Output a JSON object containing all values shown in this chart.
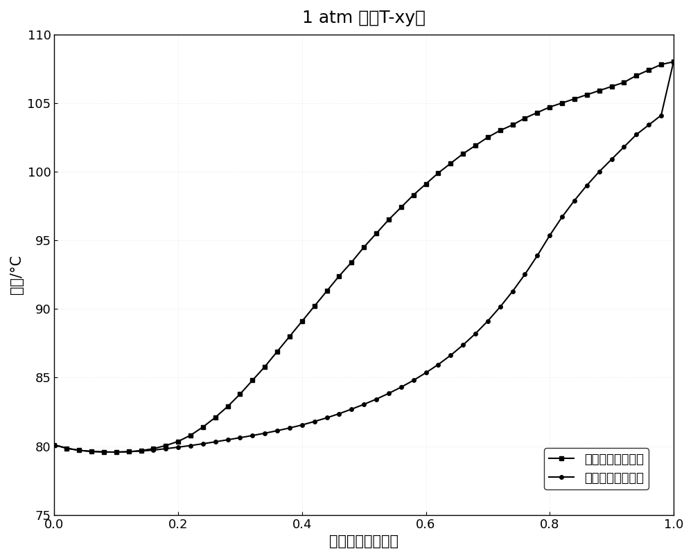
{
  "title": "1 atm 下的T-xy图",
  "xlabel": "异丁醇的摸尔分数",
  "ylabel": "温度/°C",
  "xlim": [
    0.0,
    1.0
  ],
  "ylim": [
    75,
    110
  ],
  "yticks": [
    75,
    80,
    85,
    90,
    95,
    100,
    105,
    110
  ],
  "xticks": [
    0.0,
    0.2,
    0.4,
    0.6,
    0.8,
    1.0
  ],
  "legend_vapor": "异丁醇的气相组成",
  "legend_liquid": "异丁醇的液相组成",
  "vapor_x": [
    0.0,
    0.02,
    0.04,
    0.06,
    0.08,
    0.1,
    0.12,
    0.14,
    0.16,
    0.18,
    0.2,
    0.22,
    0.24,
    0.26,
    0.28,
    0.3,
    0.32,
    0.34,
    0.36,
    0.38,
    0.4,
    0.42,
    0.44,
    0.46,
    0.48,
    0.5,
    0.52,
    0.54,
    0.56,
    0.58,
    0.6,
    0.62,
    0.64,
    0.66,
    0.68,
    0.7,
    0.72,
    0.74,
    0.76,
    0.78,
    0.8,
    0.82,
    0.84,
    0.86,
    0.88,
    0.9,
    0.92,
    0.94,
    0.96,
    0.98,
    1.0
  ],
  "vapor_T": [
    80.1,
    79.85,
    79.7,
    79.62,
    79.58,
    79.57,
    79.6,
    79.68,
    79.82,
    80.05,
    80.35,
    80.8,
    81.4,
    82.1,
    82.9,
    83.8,
    84.8,
    85.8,
    86.9,
    88.0,
    89.1,
    90.2,
    91.3,
    92.4,
    93.4,
    94.5,
    95.5,
    96.5,
    97.4,
    98.3,
    99.1,
    99.9,
    100.6,
    101.3,
    101.9,
    102.5,
    103.0,
    103.4,
    103.9,
    104.3,
    104.7,
    105.0,
    105.3,
    105.6,
    105.9,
    106.2,
    106.5,
    107.0,
    107.4,
    107.8,
    108.0
  ],
  "liquid_x": [
    0.0,
    0.02,
    0.04,
    0.06,
    0.08,
    0.1,
    0.12,
    0.14,
    0.16,
    0.18,
    0.2,
    0.22,
    0.24,
    0.26,
    0.28,
    0.3,
    0.32,
    0.34,
    0.36,
    0.38,
    0.4,
    0.42,
    0.44,
    0.46,
    0.48,
    0.5,
    0.52,
    0.54,
    0.56,
    0.58,
    0.6,
    0.62,
    0.64,
    0.66,
    0.68,
    0.7,
    0.72,
    0.74,
    0.76,
    0.78,
    0.8,
    0.82,
    0.84,
    0.86,
    0.88,
    0.9,
    0.92,
    0.94,
    0.96,
    0.98,
    1.0
  ],
  "liquid_T": [
    80.1,
    79.85,
    79.7,
    79.62,
    79.58,
    79.57,
    79.6,
    79.65,
    79.72,
    79.82,
    79.93,
    80.05,
    80.18,
    80.32,
    80.47,
    80.62,
    80.78,
    80.95,
    81.13,
    81.33,
    81.55,
    81.8,
    82.07,
    82.37,
    82.7,
    83.05,
    83.43,
    83.85,
    84.3,
    84.8,
    85.35,
    85.95,
    86.62,
    87.37,
    88.2,
    89.12,
    90.15,
    91.28,
    92.52,
    93.88,
    95.35,
    96.7,
    97.9,
    99.0,
    100.0,
    100.9,
    101.8,
    102.7,
    103.4,
    104.1,
    108.0
  ],
  "line_color": "#000000",
  "marker_vapor": "s",
  "marker_liquid": "o",
  "marker_size": 4,
  "line_width": 1.5,
  "bg_color": "#ffffff",
  "title_fontsize": 18,
  "label_fontsize": 15,
  "tick_fontsize": 13,
  "legend_fontsize": 13,
  "grid_color": "#c8c8c8",
  "grid_alpha": 0.6,
  "grid_linewidth": 0.5
}
